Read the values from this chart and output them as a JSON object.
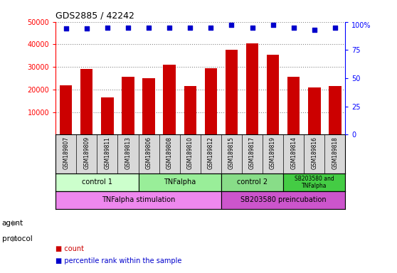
{
  "title": "GDS2885 / 42242",
  "samples": [
    "GSM189807",
    "GSM189809",
    "GSM189811",
    "GSM189813",
    "GSM189806",
    "GSM189808",
    "GSM189810",
    "GSM189812",
    "GSM189815",
    "GSM189817",
    "GSM189819",
    "GSM189814",
    "GSM189816",
    "GSM189818"
  ],
  "counts": [
    22000,
    29000,
    16500,
    25500,
    25000,
    31000,
    21500,
    29500,
    37500,
    40500,
    35500,
    25500,
    21000,
    21500
  ],
  "percentile_ranks": [
    94,
    94,
    95,
    95,
    95,
    95,
    95,
    95,
    97,
    95,
    97,
    95,
    93,
    95
  ],
  "bar_color": "#CC0000",
  "dot_color": "#0000CC",
  "ylim_left": [
    0,
    50000
  ],
  "ylim_right": [
    0,
    100
  ],
  "yticks_left": [
    10000,
    20000,
    30000,
    40000,
    50000
  ],
  "yticks_right": [
    0,
    25,
    50,
    75,
    100
  ],
  "agent_groups": [
    {
      "label": "control 1",
      "start": 0,
      "end": 4,
      "color": "#ccffcc"
    },
    {
      "label": "TNFalpha",
      "start": 4,
      "end": 8,
      "color": "#99ee99"
    },
    {
      "label": "control 2",
      "start": 8,
      "end": 11,
      "color": "#88dd88"
    },
    {
      "label": "SB203580 and\nTNFalpha",
      "start": 11,
      "end": 14,
      "color": "#44cc44"
    }
  ],
  "protocol_groups": [
    {
      "label": "TNFalpha stimulation",
      "start": 0,
      "end": 8,
      "color": "#ee88ee"
    },
    {
      "label": "SB203580 preincubation",
      "start": 8,
      "end": 14,
      "color": "#cc55cc"
    }
  ],
  "background_color": "#ffffff",
  "grid_color": "#888888"
}
